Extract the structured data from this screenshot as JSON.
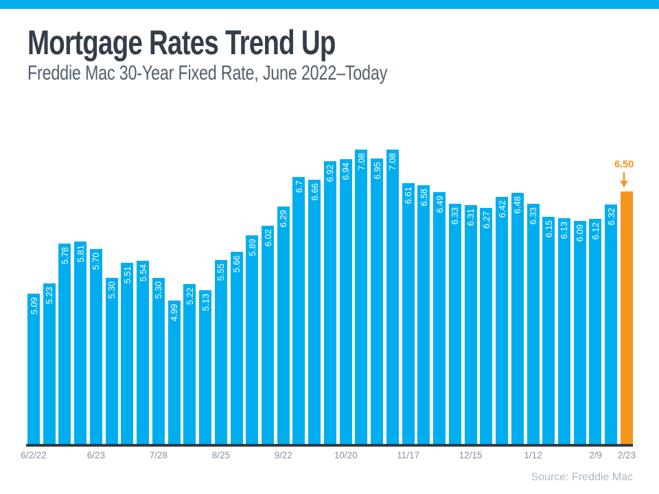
{
  "header": {
    "title": "Mortgage Rates Trend Up",
    "subtitle": "Freddie Mac 30-Year Fixed Rate, June 2022–Today"
  },
  "footer": {
    "source": "Source: Freddie Mac"
  },
  "colors": {
    "accent_blue": "#00AEEF",
    "highlight_orange": "#F7941D",
    "title_text": "#333E48",
    "subtitle_text": "#51606C",
    "axis_line": "#333B43",
    "tick_text": "#8493A0",
    "source_text": "#AFB8BF",
    "bar_label_text": "#FFFFFF"
  },
  "chart_data": {
    "type": "bar",
    "title": "Mortgage Rates Trend Up",
    "subtitle": "Freddie Mac 30-Year Fixed Rate, June 2022–Today",
    "xlabel": "",
    "ylabel": "",
    "ylim": [
      3.0,
      7.2
    ],
    "grid": false,
    "legend": false,
    "values": [
      5.09,
      5.23,
      5.78,
      5.81,
      5.7,
      5.3,
      5.51,
      5.54,
      5.3,
      4.99,
      5.22,
      5.13,
      5.55,
      5.66,
      5.89,
      6.02,
      6.29,
      6.7,
      6.66,
      6.92,
      6.94,
      7.08,
      6.95,
      7.08,
      6.61,
      6.58,
      6.49,
      6.33,
      6.31,
      6.27,
      6.42,
      6.48,
      6.33,
      6.15,
      6.13,
      6.09,
      6.12,
      6.32,
      6.5
    ],
    "bar_labels": [
      "5.09",
      "5.23",
      "5.78",
      "5.81",
      "5.70",
      "5.30",
      "5.51",
      "5.54",
      "5.30",
      "4.99",
      "5.22",
      "5.13",
      "5.55",
      "5.66",
      "5.89",
      "6.02",
      "6.29",
      "6.7",
      "6.66",
      "6.92",
      "6.94",
      "7.08",
      "6.95",
      "7.08",
      "6.61",
      "6.58",
      "6.49",
      "6.33",
      "6.31",
      "6.27",
      "6.42",
      "6.48",
      "6.33",
      "6.15",
      "6.13",
      "6.09",
      "6.12",
      "6.32",
      ""
    ],
    "highlight_index": 38,
    "annotation": {
      "text": "6.50",
      "target_index": 38,
      "arrow": "down"
    },
    "x_ticks": [
      {
        "index": 0,
        "label": "6/2/22"
      },
      {
        "index": 4,
        "label": "6/23"
      },
      {
        "index": 8,
        "label": "7/28"
      },
      {
        "index": 12,
        "label": "8/25"
      },
      {
        "index": 16,
        "label": "9/22"
      },
      {
        "index": 20,
        "label": "10/20"
      },
      {
        "index": 24,
        "label": "11/17"
      },
      {
        "index": 28,
        "label": "12/15"
      },
      {
        "index": 32,
        "label": "1/12"
      },
      {
        "index": 36,
        "label": "2/9"
      },
      {
        "index": 38,
        "label": "2/23"
      }
    ]
  }
}
